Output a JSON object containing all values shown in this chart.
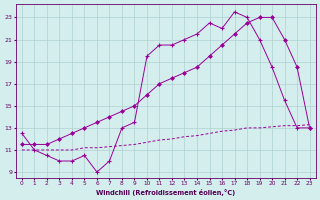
{
  "line1_x": [
    0,
    1,
    2,
    3,
    4,
    5,
    6,
    7,
    8,
    9,
    10,
    11,
    12,
    13,
    14,
    15,
    16,
    17,
    18,
    19,
    20,
    21,
    22,
    23
  ],
  "line1_y": [
    12.5,
    11.0,
    10.5,
    10.0,
    10.0,
    10.5,
    9.0,
    10.0,
    13.0,
    13.5,
    19.5,
    20.5,
    20.5,
    21.0,
    21.5,
    22.5,
    22.0,
    23.5,
    23.0,
    21.0,
    18.5,
    15.5,
    13.0,
    13.0
  ],
  "line2_x": [
    0,
    1,
    2,
    3,
    4,
    5,
    6,
    7,
    8,
    9,
    10,
    11,
    12,
    13,
    14,
    15,
    16,
    17,
    18,
    19,
    20,
    21,
    22,
    23
  ],
  "line2_y": [
    11.5,
    11.5,
    11.5,
    12.0,
    12.5,
    13.0,
    13.5,
    14.0,
    14.5,
    15.0,
    16.0,
    17.0,
    17.5,
    18.0,
    18.5,
    19.5,
    20.5,
    21.5,
    22.5,
    23.0,
    23.0,
    21.0,
    18.5,
    13.0
  ],
  "line3_x": [
    0,
    1,
    2,
    3,
    4,
    5,
    6,
    7,
    8,
    9,
    10,
    11,
    12,
    13,
    14,
    15,
    16,
    17,
    18,
    19,
    20,
    21,
    22,
    23
  ],
  "line3_y": [
    11.0,
    11.0,
    11.0,
    11.0,
    11.0,
    11.2,
    11.2,
    11.3,
    11.4,
    11.5,
    11.7,
    11.9,
    12.0,
    12.2,
    12.3,
    12.5,
    12.7,
    12.8,
    13.0,
    13.0,
    13.1,
    13.2,
    13.2,
    13.3
  ],
  "line_color": "#990099",
  "bg_color": "#d4eeee",
  "grid_color": "#b0d0d0",
  "xlabel": "Windchill (Refroidissement éolien,°C)",
  "xlim": [
    -0.5,
    23.5
  ],
  "ylim": [
    8.5,
    24.2
  ],
  "yticks": [
    9,
    11,
    13,
    15,
    17,
    19,
    21,
    23
  ],
  "xticks": [
    0,
    1,
    2,
    3,
    4,
    5,
    6,
    7,
    8,
    9,
    10,
    11,
    12,
    13,
    14,
    15,
    16,
    17,
    18,
    19,
    20,
    21,
    22,
    23
  ]
}
